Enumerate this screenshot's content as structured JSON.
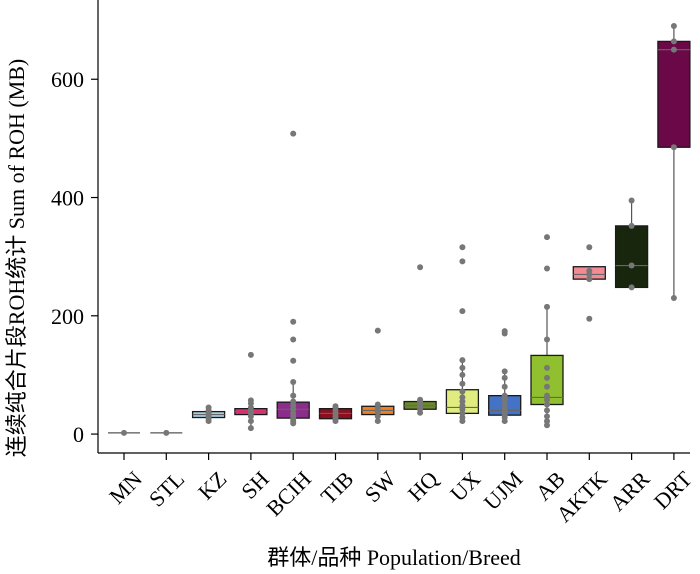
{
  "chart_data": {
    "type": "box",
    "xlabel": "群体/品种 Population/Breed",
    "ylabel": "连续纯合片段ROH统计 Sum of ROH (MB)",
    "ylim": [
      -32,
      734
    ],
    "yticks": [
      0,
      200,
      400,
      600
    ],
    "categories": [
      "MN",
      "STL",
      "KZ",
      "SH",
      "BCIH",
      "TIB",
      "SW",
      "HQ",
      "UX",
      "UJM",
      "AB",
      "AKTK",
      "ARR",
      "DRT"
    ],
    "series": [
      {
        "name": "MN",
        "color": "#f7f7f7",
        "box": null,
        "points": [
          2
        ]
      },
      {
        "name": "STL",
        "color": "#f7f7f7",
        "box": null,
        "points": [
          2
        ]
      },
      {
        "name": "KZ",
        "color": "#a6cde3",
        "box": {
          "whisker_low": 22,
          "q1": 28,
          "median": 33,
          "q3": 38,
          "whisker_high": 45
        },
        "points": [
          22,
          26,
          30,
          33,
          36,
          40,
          45
        ]
      },
      {
        "name": "SH",
        "color": "#e13177",
        "box": {
          "whisker_low": 10,
          "q1": 33,
          "median": 38,
          "q3": 43,
          "whisker_high": 57
        },
        "points": [
          10,
          22,
          30,
          35,
          40,
          45,
          52,
          57,
          134
        ]
      },
      {
        "name": "BCIH",
        "color": "#8c2d8c",
        "box": {
          "whisker_low": 18,
          "q1": 27,
          "median": 42,
          "q3": 54,
          "whisker_high": 90
        },
        "points": [
          18,
          22,
          26,
          30,
          35,
          42,
          48,
          55,
          65,
          88,
          124,
          160,
          190,
          508
        ]
      },
      {
        "name": "TIB",
        "color": "#8b0f1f",
        "box": {
          "whisker_low": 22,
          "q1": 26,
          "median": 35,
          "q3": 43,
          "whisker_high": 47
        },
        "points": [
          22,
          26,
          30,
          35,
          40,
          45,
          47
        ]
      },
      {
        "name": "SW",
        "color": "#ef7f1f",
        "box": {
          "whisker_low": 22,
          "q1": 33,
          "median": 40,
          "q3": 47,
          "whisker_high": 50
        },
        "points": [
          22,
          30,
          38,
          44,
          50,
          175
        ]
      },
      {
        "name": "HQ",
        "color": "#6a8a2a",
        "box": {
          "whisker_low": 36,
          "q1": 42,
          "median": 48,
          "q3": 55,
          "whisker_high": 58
        },
        "points": [
          36,
          42,
          48,
          55,
          58,
          282
        ]
      },
      {
        "name": "UX",
        "color": "#e0ec80",
        "box": {
          "whisker_low": 22,
          "q1": 35,
          "median": 45,
          "q3": 75,
          "whisker_high": 125
        },
        "points": [
          22,
          28,
          35,
          42,
          48,
          55,
          62,
          72,
          85,
          100,
          112,
          125,
          208,
          292,
          316
        ]
      },
      {
        "name": "UJM",
        "color": "#4472c4",
        "box": {
          "whisker_low": 22,
          "q1": 32,
          "median": 40,
          "q3": 65,
          "whisker_high": 106
        },
        "points": [
          22,
          28,
          32,
          38,
          44,
          50,
          58,
          65,
          80,
          95,
          106,
          170,
          174
        ]
      },
      {
        "name": "AB",
        "color": "#90c030",
        "box": {
          "whisker_low": 15,
          "q1": 50,
          "median": 62,
          "q3": 133,
          "whisker_high": 215
        },
        "points": [
          15,
          22,
          30,
          40,
          50,
          58,
          65,
          80,
          95,
          112,
          160,
          215,
          280,
          333
        ]
      },
      {
        "name": "AKTK",
        "color": "#f48a94",
        "box": {
          "whisker_low": 262,
          "q1": 262,
          "median": 270,
          "q3": 283,
          "whisker_high": 283
        },
        "points": [
          195,
          262,
          270,
          276,
          316
        ]
      },
      {
        "name": "ARR",
        "color": "#18260e",
        "box": {
          "whisker_low": 248,
          "q1": 248,
          "median": 285,
          "q3": 352,
          "whisker_high": 395
        },
        "points": [
          248,
          285,
          352,
          395
        ]
      },
      {
        "name": "DRT",
        "color": "#6a0848",
        "box": {
          "whisker_low": 230,
          "q1": 485,
          "median": 650,
          "q3": 664,
          "whisker_high": 690
        },
        "points": [
          230,
          485,
          650,
          664,
          690
        ]
      }
    ],
    "grid": false,
    "legend": "none"
  }
}
